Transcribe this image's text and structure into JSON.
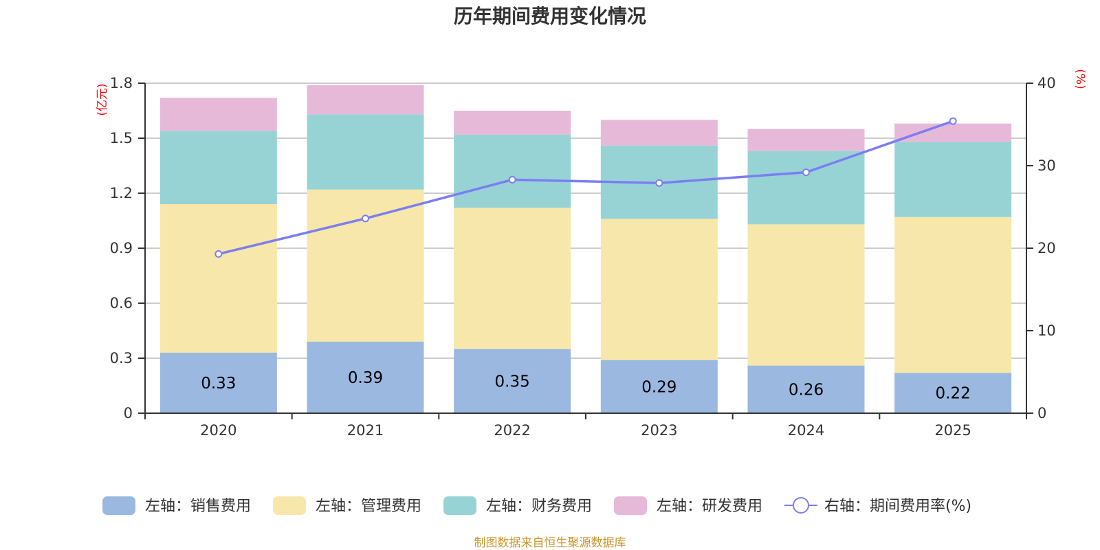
{
  "chart_data": {
    "type": "bar",
    "stacked": true,
    "title": "历年期间费用变化情况",
    "categories": [
      "2020",
      "2021",
      "2022",
      "2023",
      "2024",
      "2025"
    ],
    "left_axis": {
      "name": "(亿元)",
      "ylim": [
        0,
        1.8
      ],
      "ticks": [
        "0",
        "0.3",
        "0.6",
        "0.9",
        "1.2",
        "1.5",
        "1.8"
      ]
    },
    "right_axis": {
      "name": "(%)",
      "ylim": [
        0,
        40
      ],
      "ticks": [
        "0",
        "10",
        "20",
        "30",
        "40"
      ]
    },
    "grid": true,
    "series": [
      {
        "name": "左轴：销售费用",
        "axis": "left",
        "type": "bar",
        "color": "#9bb8e1",
        "values": [
          0.33,
          0.39,
          0.35,
          0.29,
          0.26,
          0.22
        ],
        "show_labels": true
      },
      {
        "name": "左轴：管理费用",
        "axis": "left",
        "type": "bar",
        "color": "#f7e7aa",
        "values": [
          0.81,
          0.83,
          0.77,
          0.77,
          0.77,
          0.85
        ],
        "show_labels": false
      },
      {
        "name": "左轴：财务费用",
        "axis": "left",
        "type": "bar",
        "color": "#97d3d4",
        "values": [
          0.4,
          0.41,
          0.4,
          0.4,
          0.4,
          0.41
        ],
        "show_labels": false
      },
      {
        "name": "左轴：研发费用",
        "axis": "left",
        "type": "bar",
        "color": "#e7b9d8",
        "values": [
          0.18,
          0.16,
          0.13,
          0.14,
          0.12,
          0.1
        ],
        "show_labels": false
      },
      {
        "name": "右轴：期间费用率(%)",
        "axis": "right",
        "type": "line",
        "color": "#7b7ef2",
        "values": [
          19.3,
          23.6,
          28.3,
          27.9,
          29.2,
          35.4
        ]
      }
    ],
    "legend_position": "bottom",
    "source_note": "制图数据来自恒生聚源数据库"
  }
}
